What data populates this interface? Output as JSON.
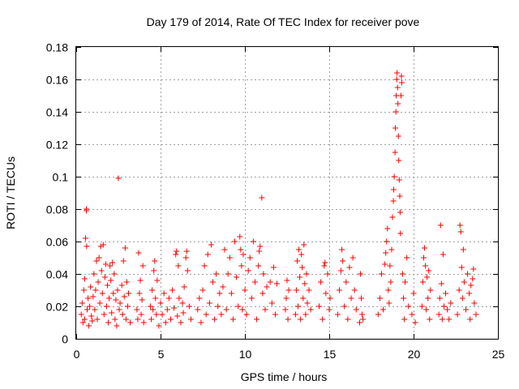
{
  "chart_data": {
    "type": "scatter",
    "title": "Day 179 of 2014, Rate Of TEC Index for receiver pove",
    "xlabel": "GPS time / hours",
    "ylabel": "ROTI / TECUs",
    "xlim": [
      0,
      25
    ],
    "ylim": [
      0,
      0.18
    ],
    "xticks": [
      0,
      5,
      10,
      15,
      20,
      25
    ],
    "xtick_labels": [
      "0",
      "5",
      "10",
      "15",
      "20",
      "25"
    ],
    "yticks": [
      0,
      0.02,
      0.04,
      0.06,
      0.08,
      0.1,
      0.12,
      0.14,
      0.16,
      0.18
    ],
    "ytick_labels": [
      "0",
      "0.02",
      "0.04",
      "0.06",
      "0.08",
      "0.1",
      "0.12",
      "0.14",
      "0.16",
      "0.18"
    ],
    "grid": true,
    "marker": "+",
    "color": "#ff0000",
    "series": [
      {
        "name": "ROTI",
        "points": [
          [
            0.3,
            0.015
          ],
          [
            0.35,
            0.022
          ],
          [
            0.4,
            0.01
          ],
          [
            0.45,
            0.03
          ],
          [
            0.5,
            0.012
          ],
          [
            0.5,
            0.037
          ],
          [
            0.55,
            0.062
          ],
          [
            0.6,
            0.08
          ],
          [
            0.6,
            0.079
          ],
          [
            0.62,
            0.057
          ],
          [
            0.65,
            0.018
          ],
          [
            0.7,
            0.025
          ],
          [
            0.75,
            0.008
          ],
          [
            0.8,
            0.02
          ],
          [
            0.85,
            0.032
          ],
          [
            0.9,
            0.014
          ],
          [
            0.95,
            0.011
          ],
          [
            1.0,
            0.026
          ],
          [
            1.05,
            0.04
          ],
          [
            1.1,
            0.018
          ],
          [
            1.15,
            0.03
          ],
          [
            1.2,
            0.048
          ],
          [
            1.25,
            0.012
          ],
          [
            1.3,
            0.035
          ],
          [
            1.35,
            0.05
          ],
          [
            1.4,
            0.022
          ],
          [
            1.45,
            0.057
          ],
          [
            1.5,
            0.042
          ],
          [
            1.55,
            0.028
          ],
          [
            1.6,
            0.058
          ],
          [
            1.65,
            0.015
          ],
          [
            1.7,
            0.038
          ],
          [
            1.75,
            0.046
          ],
          [
            1.8,
            0.02
          ],
          [
            1.85,
            0.033
          ],
          [
            1.9,
            0.01
          ],
          [
            1.95,
            0.025
          ],
          [
            2.0,
            0.045
          ],
          [
            2.05,
            0.036
          ],
          [
            2.1,
            0.016
          ],
          [
            2.15,
            0.047
          ],
          [
            2.2,
            0.028
          ],
          [
            2.25,
            0.04
          ],
          [
            2.3,
            0.012
          ],
          [
            2.35,
            0.024
          ],
          [
            2.4,
            0.008
          ],
          [
            2.45,
            0.03
          ],
          [
            2.5,
            0.099
          ],
          [
            2.55,
            0.018
          ],
          [
            2.6,
            0.022
          ],
          [
            2.7,
            0.033
          ],
          [
            2.75,
            0.015
          ],
          [
            2.8,
            0.048
          ],
          [
            2.85,
            0.026
          ],
          [
            2.9,
            0.056
          ],
          [
            2.95,
            0.012
          ],
          [
            3.0,
            0.035
          ],
          [
            3.05,
            0.02
          ],
          [
            3.1,
            0.028
          ],
          [
            3.2,
            0.01
          ],
          [
            3.6,
            0.018
          ],
          [
            3.65,
            0.012
          ],
          [
            3.7,
            0.053
          ],
          [
            3.75,
            0.028
          ],
          [
            3.8,
            0.036
          ],
          [
            3.85,
            0.015
          ],
          [
            3.9,
            0.024
          ],
          [
            3.95,
            0.045
          ],
          [
            4.0,
            0.01
          ],
          [
            4.4,
            0.02
          ],
          [
            4.45,
            0.012
          ],
          [
            4.5,
            0.03
          ],
          [
            4.55,
            0.018
          ],
          [
            4.6,
            0.042
          ],
          [
            4.65,
            0.048
          ],
          [
            4.7,
            0.025
          ],
          [
            4.75,
            0.015
          ],
          [
            4.8,
            0.036
          ],
          [
            4.9,
            0.008
          ],
          [
            5.0,
            0.022
          ],
          [
            5.1,
            0.015
          ],
          [
            5.2,
            0.028
          ],
          [
            5.3,
            0.01
          ],
          [
            5.4,
            0.018
          ],
          [
            5.5,
            0.025
          ],
          [
            5.6,
            0.012
          ],
          [
            5.7,
            0.03
          ],
          [
            5.8,
            0.019
          ],
          [
            5.9,
            0.052
          ],
          [
            5.95,
            0.054
          ],
          [
            6.0,
            0.014
          ],
          [
            6.05,
            0.045
          ],
          [
            6.1,
            0.025
          ],
          [
            6.2,
            0.01
          ],
          [
            6.3,
            0.022
          ],
          [
            6.35,
            0.016
          ],
          [
            6.4,
            0.032
          ],
          [
            6.5,
            0.05
          ],
          [
            6.55,
            0.054
          ],
          [
            6.6,
            0.042
          ],
          [
            6.7,
            0.02
          ],
          [
            6.8,
            0.012
          ],
          [
            7.2,
            0.018
          ],
          [
            7.3,
            0.025
          ],
          [
            7.4,
            0.01
          ],
          [
            7.5,
            0.03
          ],
          [
            7.6,
            0.045
          ],
          [
            7.7,
            0.015
          ],
          [
            7.8,
            0.052
          ],
          [
            7.9,
            0.022
          ],
          [
            8.0,
            0.058
          ],
          [
            8.1,
            0.035
          ],
          [
            8.2,
            0.012
          ],
          [
            8.3,
            0.04
          ],
          [
            8.4,
            0.02
          ],
          [
            8.5,
            0.028
          ],
          [
            8.6,
            0.015
          ],
          [
            8.7,
            0.032
          ],
          [
            8.8,
            0.055
          ],
          [
            8.9,
            0.018
          ],
          [
            9.0,
            0.04
          ],
          [
            9.1,
            0.05
          ],
          [
            9.2,
            0.028
          ],
          [
            9.3,
            0.012
          ],
          [
            9.4,
            0.06
          ],
          [
            9.5,
            0.038
          ],
          [
            9.6,
            0.02
          ],
          [
            9.7,
            0.063
          ],
          [
            9.75,
            0.055
          ],
          [
            9.8,
            0.045
          ],
          [
            9.85,
            0.018
          ],
          [
            9.9,
            0.052
          ],
          [
            10.0,
            0.03
          ],
          [
            10.1,
            0.015
          ],
          [
            10.2,
            0.042
          ],
          [
            10.3,
            0.05
          ],
          [
            10.4,
            0.025
          ],
          [
            10.5,
            0.06
          ],
          [
            10.6,
            0.035
          ],
          [
            10.7,
            0.012
          ],
          [
            10.8,
            0.045
          ],
          [
            10.85,
            0.054
          ],
          [
            10.9,
            0.057
          ],
          [
            11.0,
            0.087
          ],
          [
            11.05,
            0.028
          ],
          [
            11.1,
            0.04
          ],
          [
            11.2,
            0.018
          ],
          [
            11.3,
            0.032
          ],
          [
            11.5,
            0.035
          ],
          [
            11.6,
            0.022
          ],
          [
            11.7,
            0.044
          ],
          [
            11.8,
            0.015
          ],
          [
            11.9,
            0.034
          ],
          [
            12.4,
            0.018
          ],
          [
            12.45,
            0.025
          ],
          [
            12.5,
            0.036
          ],
          [
            12.55,
            0.012
          ],
          [
            12.6,
            0.03
          ],
          [
            13.0,
            0.015
          ],
          [
            13.05,
            0.03
          ],
          [
            13.1,
            0.048
          ],
          [
            13.15,
            0.02
          ],
          [
            13.2,
            0.055
          ],
          [
            13.25,
            0.038
          ],
          [
            13.3,
            0.012
          ],
          [
            13.35,
            0.052
          ],
          [
            13.4,
            0.044
          ],
          [
            13.45,
            0.025
          ],
          [
            13.5,
            0.058
          ],
          [
            13.55,
            0.034
          ],
          [
            13.6,
            0.015
          ],
          [
            13.65,
            0.04
          ],
          [
            13.7,
            0.022
          ],
          [
            13.8,
            0.03
          ],
          [
            13.9,
            0.018
          ],
          [
            14.4,
            0.02
          ],
          [
            14.5,
            0.035
          ],
          [
            14.6,
            0.012
          ],
          [
            14.7,
            0.045
          ],
          [
            14.75,
            0.047
          ],
          [
            14.8,
            0.028
          ],
          [
            14.9,
            0.04
          ],
          [
            15.0,
            0.018
          ],
          [
            15.05,
            0.025
          ],
          [
            15.5,
            0.015
          ],
          [
            15.6,
            0.03
          ],
          [
            15.7,
            0.042
          ],
          [
            15.75,
            0.055
          ],
          [
            15.8,
            0.048
          ],
          [
            15.9,
            0.02
          ],
          [
            16.0,
            0.035
          ],
          [
            16.1,
            0.012
          ],
          [
            16.2,
            0.044
          ],
          [
            16.3,
            0.025
          ],
          [
            16.4,
            0.05
          ],
          [
            16.5,
            0.03
          ],
          [
            16.6,
            0.018
          ],
          [
            16.8,
            0.01
          ],
          [
            16.85,
            0.04
          ],
          [
            16.9,
            0.025
          ],
          [
            16.95,
            0.015
          ],
          [
            17.0,
            0.012
          ],
          [
            17.9,
            0.015
          ],
          [
            18.0,
            0.025
          ],
          [
            18.1,
            0.04
          ],
          [
            18.2,
            0.018
          ],
          [
            18.3,
            0.046
          ],
          [
            18.35,
            0.053
          ],
          [
            18.4,
            0.06
          ],
          [
            18.45,
            0.068
          ],
          [
            18.5,
            0.03
          ],
          [
            18.55,
            0.022
          ],
          [
            18.6,
            0.045
          ],
          [
            18.65,
            0.035
          ],
          [
            18.7,
            0.055
          ],
          [
            18.75,
            0.075
          ],
          [
            18.8,
            0.085
          ],
          [
            18.82,
            0.092
          ],
          [
            18.85,
            0.1
          ],
          [
            18.9,
            0.115
          ],
          [
            18.92,
            0.13
          ],
          [
            18.95,
            0.14
          ],
          [
            18.97,
            0.15
          ],
          [
            19.0,
            0.16
          ],
          [
            19.02,
            0.164
          ],
          [
            19.05,
            0.155
          ],
          [
            19.07,
            0.145
          ],
          [
            19.1,
            0.125
          ],
          [
            19.12,
            0.11
          ],
          [
            19.15,
            0.098
          ],
          [
            19.18,
            0.088
          ],
          [
            19.2,
            0.078
          ],
          [
            19.22,
            0.065
          ],
          [
            19.25,
            0.15
          ],
          [
            19.28,
            0.162
          ],
          [
            19.3,
            0.158
          ],
          [
            19.35,
            0.04
          ],
          [
            19.4,
            0.025
          ],
          [
            19.45,
            0.012
          ],
          [
            19.5,
            0.035
          ],
          [
            19.6,
            0.05
          ],
          [
            19.7,
            0.02
          ],
          [
            19.9,
            0.015
          ],
          [
            20.0,
            0.028
          ],
          [
            20.1,
            0.01
          ],
          [
            20.5,
            0.02
          ],
          [
            20.55,
            0.035
          ],
          [
            20.6,
            0.05
          ],
          [
            20.65,
            0.056
          ],
          [
            20.7,
            0.045
          ],
          [
            20.75,
            0.018
          ],
          [
            20.8,
            0.038
          ],
          [
            20.85,
            0.025
          ],
          [
            20.9,
            0.042
          ],
          [
            20.95,
            0.012
          ],
          [
            21.0,
            0.03
          ],
          [
            21.5,
            0.015
          ],
          [
            21.55,
            0.025
          ],
          [
            21.6,
            0.07
          ],
          [
            21.65,
            0.034
          ],
          [
            21.7,
            0.012
          ],
          [
            21.75,
            0.052
          ],
          [
            21.8,
            0.02
          ],
          [
            21.9,
            0.028
          ],
          [
            22.0,
            0.018
          ],
          [
            22.1,
            0.012
          ],
          [
            22.2,
            0.022
          ],
          [
            22.6,
            0.015
          ],
          [
            22.7,
            0.03
          ],
          [
            22.75,
            0.07
          ],
          [
            22.8,
            0.066
          ],
          [
            22.85,
            0.044
          ],
          [
            22.9,
            0.025
          ],
          [
            22.95,
            0.055
          ],
          [
            23.0,
            0.035
          ],
          [
            23.1,
            0.018
          ],
          [
            23.2,
            0.04
          ],
          [
            23.3,
            0.028
          ],
          [
            23.35,
            0.012
          ],
          [
            23.4,
            0.033
          ],
          [
            23.5,
            0.037
          ],
          [
            23.55,
            0.043
          ],
          [
            23.6,
            0.022
          ],
          [
            23.7,
            0.015
          ]
        ]
      }
    ]
  }
}
